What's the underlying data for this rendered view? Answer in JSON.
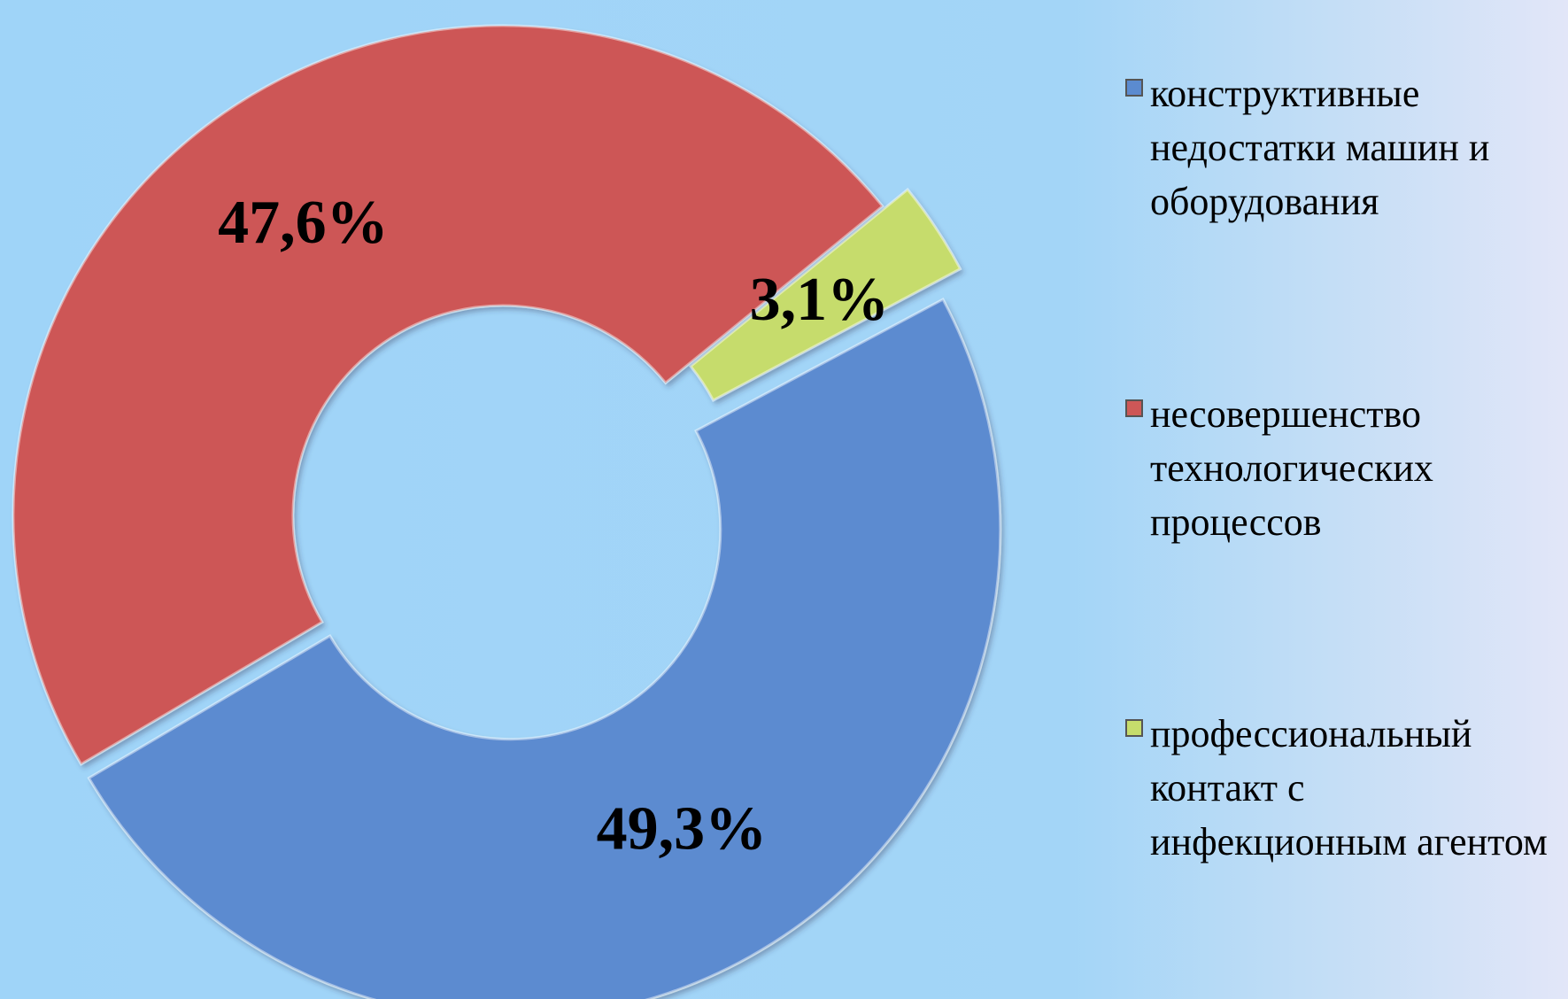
{
  "chart_data": {
    "type": "donut",
    "series": [
      {
        "name": "конструктивные недостатки машин и оборудования",
        "color": "#5b8bd0",
        "values": [
          49.3
        ],
        "value_labels": [
          "49,3%"
        ]
      },
      {
        "name": "несовершенство технологических процессов",
        "color": "#cd5757",
        "values": [
          47.6
        ],
        "value_labels": [
          "47,6%"
        ]
      },
      {
        "name": "профессиональный контакт с инфекционным агентом",
        "color": "#c6dc6c",
        "values": [
          3.1
        ],
        "value_labels": [
          "3,1%"
        ]
      }
    ]
  }
}
